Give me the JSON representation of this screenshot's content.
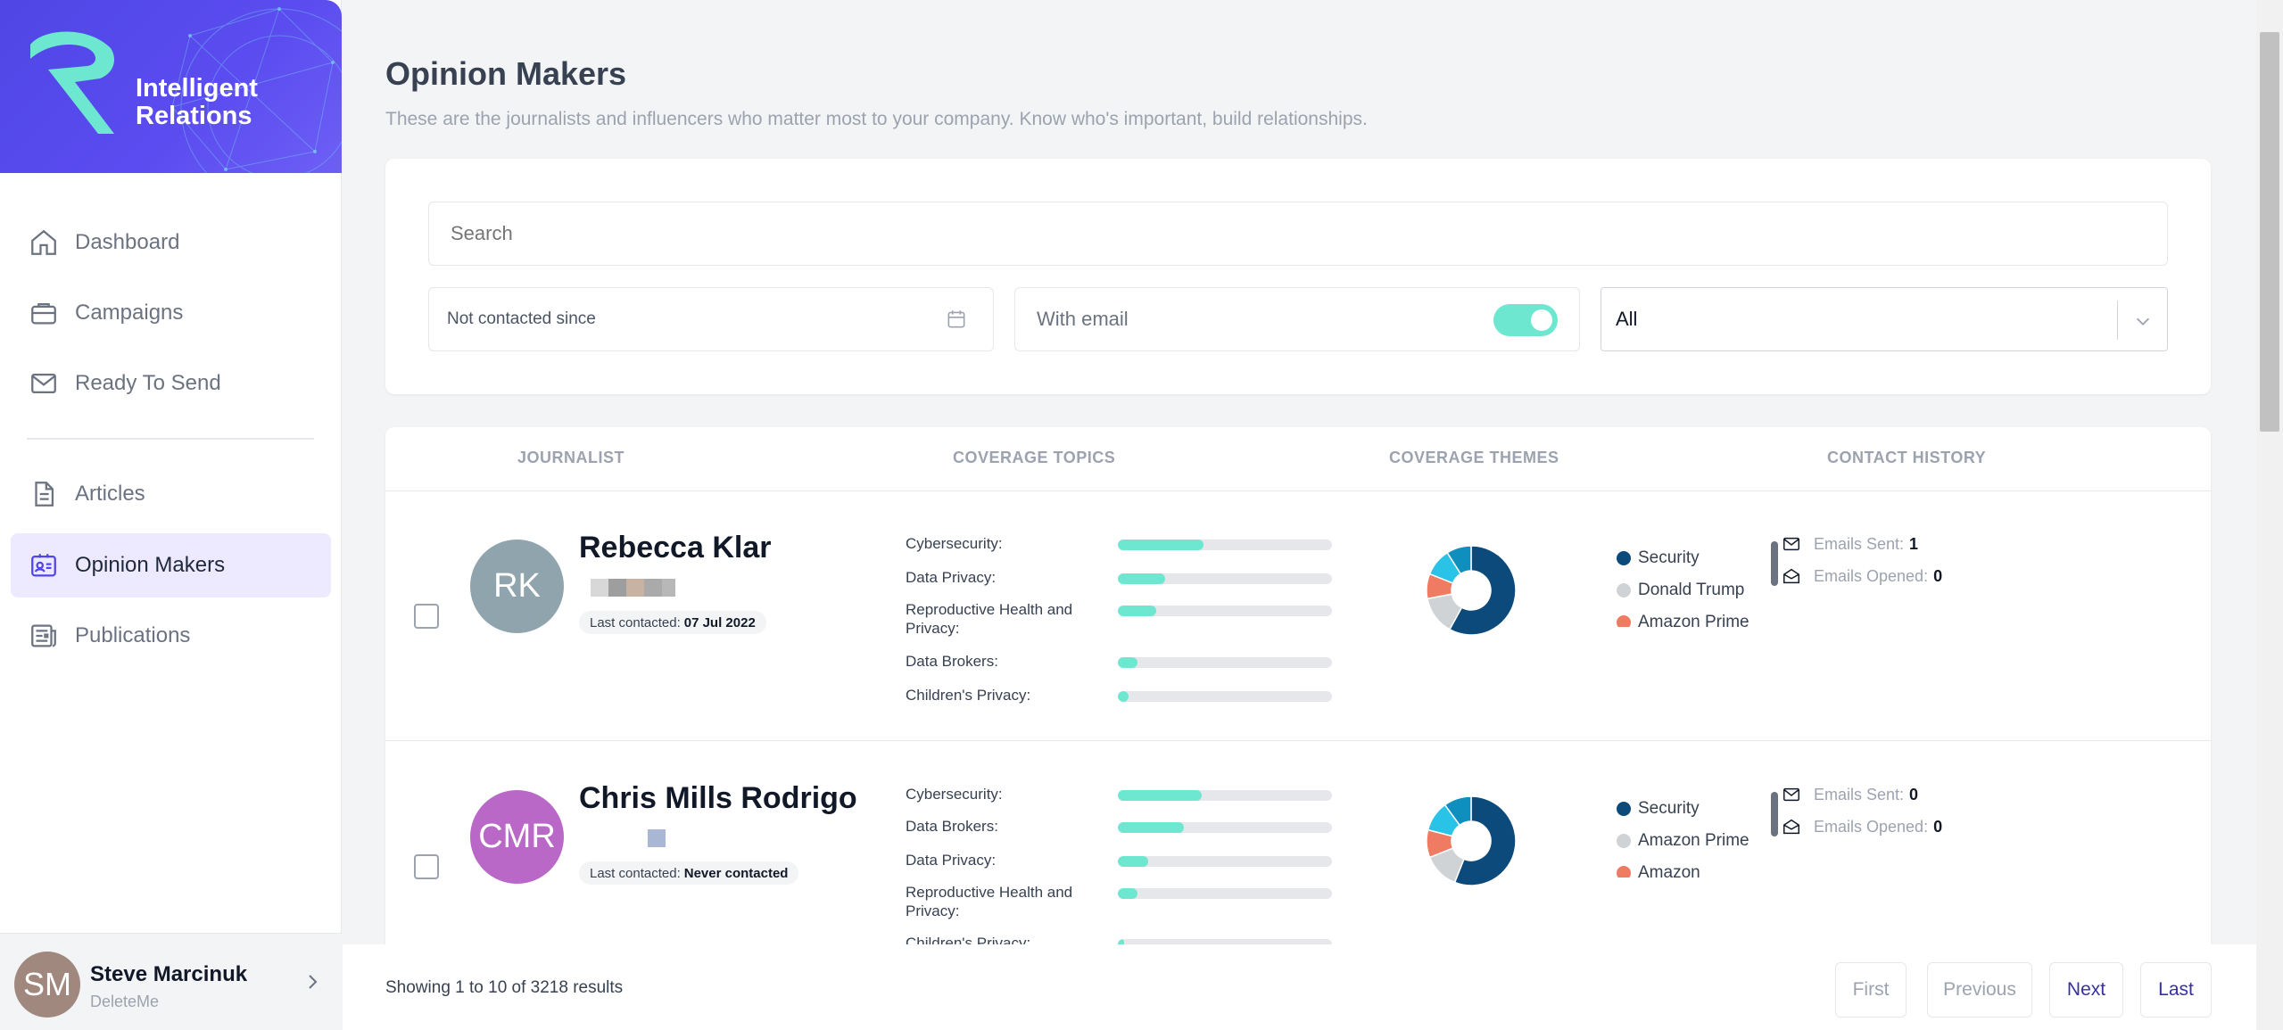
{
  "sidebar": {
    "brand": {
      "line1": "Intelligent",
      "line2": "Relations"
    },
    "nav": [
      {
        "label": "Dashboard",
        "icon": "home-icon",
        "active": false
      },
      {
        "label": "Campaigns",
        "icon": "briefcase-icon",
        "active": false
      },
      {
        "label": "Ready To Send",
        "icon": "mail-icon",
        "active": false
      },
      {
        "label": "Articles",
        "icon": "document-icon",
        "active": false
      },
      {
        "label": "Opinion Makers",
        "icon": "contact-card-icon",
        "active": true
      },
      {
        "label": "Publications",
        "icon": "newspaper-icon",
        "active": false
      }
    ],
    "user": {
      "initials": "SM",
      "name": "Steve Marcinuk",
      "org": "DeleteMe"
    }
  },
  "header": {
    "title": "Opinion Makers",
    "subtitle": "These are the journalists and influencers who matter most to your company. Know who's important, build relationships."
  },
  "filters": {
    "search_placeholder": "Search",
    "date_placeholder": "Not contacted since",
    "email_label": "With email",
    "email_toggle_on": true,
    "select_value": "All"
  },
  "table": {
    "columns": [
      "JOURNALIST",
      "COVERAGE TOPICS",
      "COVERAGE THEMES",
      "CONTACT HISTORY"
    ],
    "rows": [
      {
        "initials": "RK",
        "avatar_color": "#90a4ae",
        "name": "Rebecca Klar",
        "last_contacted_label": "Last contacted:",
        "last_contacted": "07 Jul 2022",
        "topics": [
          {
            "label": "Cybersecurity:",
            "value": 0.4
          },
          {
            "label": "Data Privacy:",
            "value": 0.22
          },
          {
            "label": "Reproductive Health and Privacy:",
            "value": 0.18
          },
          {
            "label": "Data Brokers:",
            "value": 0.09
          },
          {
            "label": "Children's Privacy:",
            "value": 0.05
          }
        ],
        "themes": [
          {
            "name": "Security",
            "color": "#0b4a7a",
            "value": 58
          },
          {
            "name": "Donald Trump",
            "color": "#cfd3d6",
            "value": 14
          },
          {
            "name": "Amazon Prime",
            "color": "#f07b63",
            "value": 9
          },
          {
            "name": "",
            "color": "#29c3e8",
            "value": 10
          },
          {
            "name": "",
            "color": "#0e8fbd",
            "value": 9
          }
        ],
        "emails_sent_label": "Emails Sent:",
        "emails_sent": "1",
        "emails_opened_label": "Emails Opened:",
        "emails_opened": "0"
      },
      {
        "initials": "CMR",
        "avatar_color": "#ba68c8",
        "name": "Chris Mills Rodrigo",
        "last_contacted_label": "Last contacted:",
        "last_contacted": "Never contacted",
        "topics": [
          {
            "label": "Cybersecurity:",
            "value": 0.39
          },
          {
            "label": "Data Brokers:",
            "value": 0.31
          },
          {
            "label": "Data Privacy:",
            "value": 0.14
          },
          {
            "label": "Reproductive Health and Privacy:",
            "value": 0.09
          },
          {
            "label": "Children's Privacy:",
            "value": 0.03
          }
        ],
        "themes": [
          {
            "name": "Security",
            "color": "#0b4a7a",
            "value": 56
          },
          {
            "name": "Amazon Prime",
            "color": "#cfd3d6",
            "value": 13
          },
          {
            "name": "Amazon",
            "color": "#f07b63",
            "value": 10
          },
          {
            "name": "",
            "color": "#29c3e8",
            "value": 11
          },
          {
            "name": "",
            "color": "#0e8fbd",
            "value": 10
          }
        ],
        "emails_sent_label": "Emails Sent:",
        "emails_sent": "0",
        "emails_opened_label": "Emails Opened:",
        "emails_opened": "0"
      }
    ]
  },
  "pagination": {
    "summary": "Showing 1 to 10 of 3218 results",
    "first": "First",
    "previous": "Previous",
    "next": "Next",
    "last": "Last"
  },
  "colors": {
    "accent": "#4f46e5",
    "toggle": "#6ee7d0",
    "bar_fill": "#6ee7d0"
  }
}
